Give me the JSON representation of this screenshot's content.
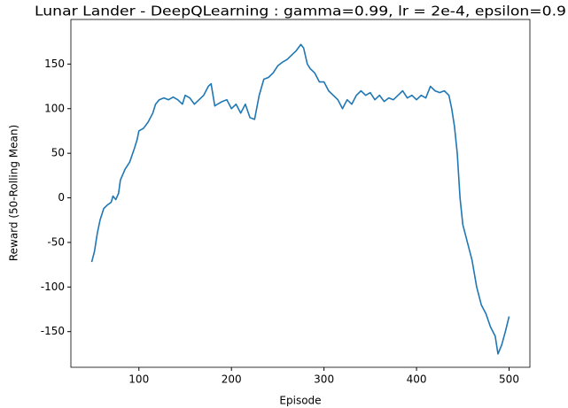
{
  "chart_data": {
    "type": "line",
    "title": "Lunar Lander - DeepQLearning : gamma=0.99, lr = 2e-4, epsilon=0.9",
    "x_label": "Episode",
    "y_label": "Reward (50-Rolling Mean)",
    "x": [
      49,
      52,
      55,
      58,
      62,
      66,
      70,
      72,
      75,
      78,
      80,
      85,
      90,
      95,
      98,
      100,
      105,
      110,
      115,
      118,
      122,
      127,
      132,
      137,
      142,
      147,
      150,
      155,
      160,
      165,
      170,
      175,
      178,
      182,
      185,
      190,
      195,
      200,
      205,
      210,
      215,
      220,
      225,
      230,
      235,
      240,
      245,
      250,
      255,
      260,
      265,
      270,
      275,
      278,
      282,
      285,
      290,
      295,
      300,
      305,
      310,
      315,
      320,
      325,
      330,
      335,
      340,
      345,
      350,
      355,
      360,
      365,
      370,
      375,
      380,
      385,
      390,
      395,
      400,
      405,
      410,
      415,
      420,
      425,
      430,
      435,
      438,
      441,
      444,
      447,
      450,
      455,
      460,
      465,
      470,
      475,
      480,
      485,
      488,
      492,
      496,
      500
    ],
    "series": [
      {
        "name": "Reward",
        "color": "#1f77b4",
        "values": [
          -72,
          -60,
          -40,
          -25,
          -12,
          -8,
          -5,
          2,
          -2,
          5,
          20,
          32,
          40,
          55,
          65,
          75,
          78,
          85,
          95,
          105,
          110,
          112,
          110,
          113,
          110,
          105,
          115,
          112,
          105,
          110,
          115,
          125,
          128,
          103,
          105,
          108,
          110,
          100,
          105,
          95,
          105,
          90,
          88,
          115,
          133,
          135,
          140,
          148,
          152,
          155,
          160,
          165,
          172,
          168,
          150,
          145,
          140,
          130,
          130,
          120,
          115,
          110,
          100,
          110,
          105,
          115,
          120,
          115,
          118,
          110,
          115,
          108,
          112,
          110,
          115,
          120,
          112,
          115,
          110,
          115,
          112,
          125,
          120,
          118,
          120,
          115,
          100,
          80,
          50,
          0,
          -30,
          -50,
          -70,
          -100,
          -120,
          -130,
          -145,
          -155,
          -175,
          -165,
          -150,
          -133
        ]
      }
    ],
    "xlim": [
      26.5,
      522.5
    ],
    "ylim": [
      -190,
      200
    ],
    "xticks": [
      100,
      200,
      300,
      400,
      500
    ],
    "yticks": [
      -150,
      -100,
      -50,
      0,
      50,
      100,
      150
    ]
  }
}
